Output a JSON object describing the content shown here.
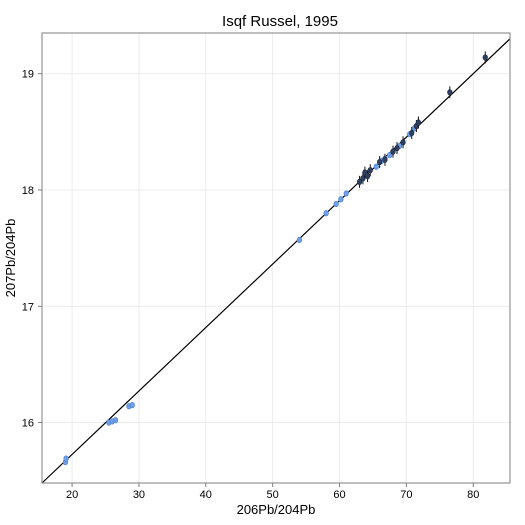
{
  "chart_data": {
    "type": "scatter",
    "title": "Isqf Russel, 1995",
    "xlabel": "206Pb/204Pb",
    "ylabel": "207Pb/204Pb",
    "xlim": [
      15.5,
      85.5
    ],
    "ylim": [
      15.48,
      19.35
    ],
    "xticks": [
      20,
      30,
      40,
      50,
      60,
      70,
      80
    ],
    "yticks": [
      16,
      17,
      18,
      19
    ],
    "grid": true,
    "fit_line": {
      "x": [
        15.5,
        85.5
      ],
      "y": [
        15.48,
        19.3
      ]
    },
    "series": [
      {
        "color": "#6f9fe6",
        "points": [
          [
            19.0,
            15.66
          ],
          [
            19.1,
            15.69
          ],
          [
            25.5,
            16.0
          ],
          [
            26.0,
            16.01
          ],
          [
            26.5,
            16.02
          ],
          [
            28.5,
            16.14
          ],
          [
            29.0,
            16.15
          ],
          [
            54.0,
            17.57
          ],
          [
            58.0,
            17.8
          ],
          [
            59.5,
            17.88
          ],
          [
            60.2,
            17.92
          ],
          [
            61.0,
            17.97
          ],
          [
            65.5,
            18.2
          ],
          [
            66.3,
            18.25
          ],
          [
            66.8,
            18.27
          ],
          [
            67.5,
            18.3
          ],
          [
            69.0,
            18.38
          ],
          [
            70.5,
            18.48
          ],
          [
            71.2,
            18.53
          ]
        ]
      },
      {
        "color": "#2f3f5f",
        "points": [
          [
            63.0,
            18.07
          ],
          [
            63.5,
            18.1
          ],
          [
            63.8,
            18.15
          ],
          [
            64.2,
            18.12
          ],
          [
            64.6,
            18.17
          ],
          [
            66.0,
            18.24
          ],
          [
            66.8,
            18.26
          ],
          [
            68.0,
            18.33
          ],
          [
            68.6,
            18.36
          ],
          [
            69.5,
            18.41
          ],
          [
            70.8,
            18.49
          ],
          [
            71.5,
            18.55
          ],
          [
            71.8,
            18.58
          ],
          [
            76.5,
            18.84
          ],
          [
            81.8,
            19.14
          ]
        ]
      }
    ]
  }
}
